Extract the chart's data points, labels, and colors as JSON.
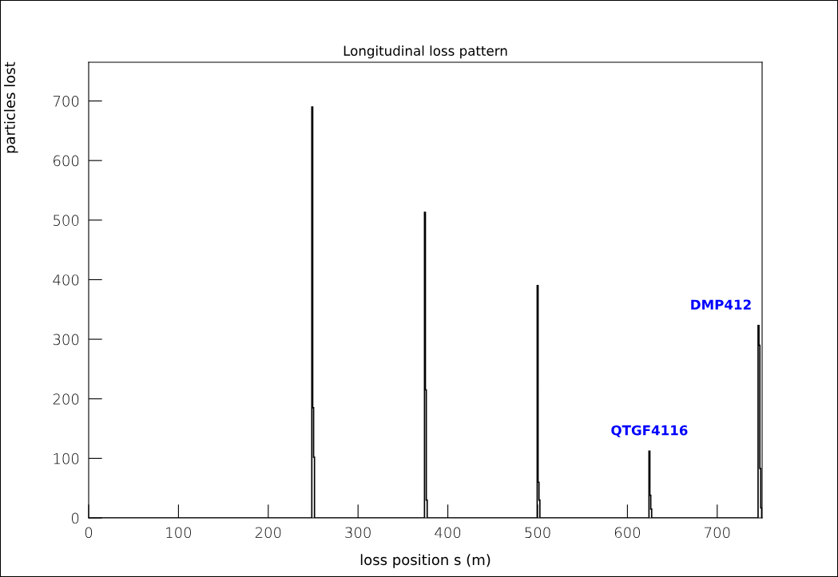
{
  "chart_data": {
    "type": "histogram",
    "title": "Longitudinal loss pattern",
    "xlabel": "loss position s (m)",
    "ylabel": "particles lost",
    "bins": [
      0,
      248.5,
      249.5,
      250.5,
      251.5,
      374,
      375,
      376,
      377,
      499.5,
      500.5,
      501.5,
      502.5,
      624,
      625,
      626,
      627,
      745.5,
      746.5,
      747.5,
      748.5,
      749.5
    ],
    "values": [
      0,
      690,
      185,
      102,
      0,
      513,
      215,
      30,
      0,
      390,
      60,
      30,
      0,
      112,
      38,
      15,
      0,
      323,
      290,
      83,
      17
    ],
    "color": "#000000",
    "xlim": [
      0,
      750
    ],
    "ylim": [
      0,
      765
    ],
    "xticks": [
      0,
      100,
      200,
      300,
      400,
      500,
      600,
      700
    ],
    "yticks": [
      0,
      100,
      200,
      300,
      400,
      500,
      600,
      700
    ],
    "annotations": [
      {
        "text": "QTGF4116",
        "x": 624.5,
        "y": 112
      },
      {
        "text": "DMP412",
        "x": 746,
        "y": 323
      }
    ],
    "grid": false
  }
}
